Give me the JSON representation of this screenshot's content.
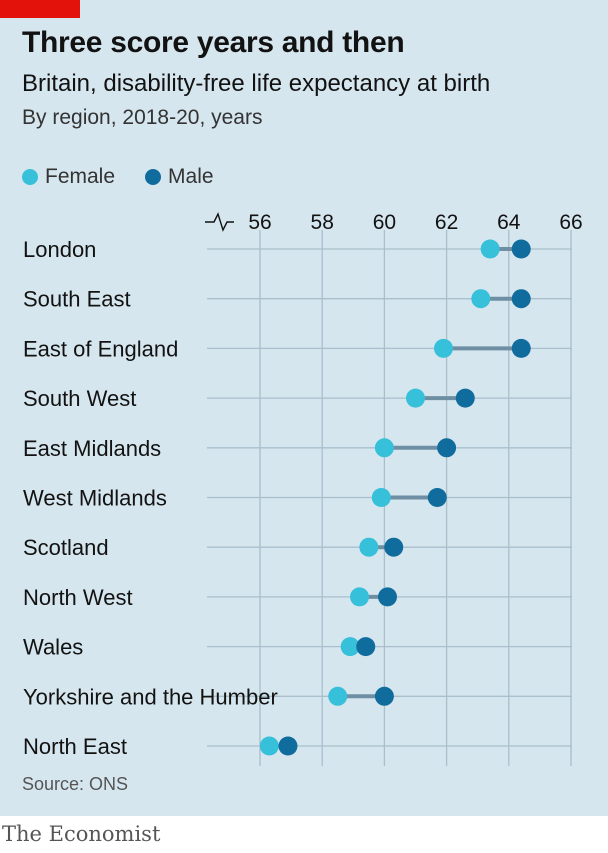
{
  "header": {
    "title": "Three score years and then",
    "subtitle": "Britain, disability-free life expectancy at birth",
    "subsubtitle": "By region, 2018-20, years"
  },
  "footer": {
    "source": "Source: ONS",
    "brand": "The Economist"
  },
  "colors": {
    "female": "#36c0d9",
    "male": "#116c9e",
    "connector": "#6e8fa3",
    "grid": "#a9bfcc",
    "brand_red": "#e3120b"
  },
  "chart_data": {
    "type": "dumbbell",
    "title": "Three score years and then",
    "subtitle": "Britain, disability-free life expectancy at birth",
    "unit_note": "By region, 2018-20, years",
    "legend": "top-left",
    "grid": true,
    "axis_break": true,
    "xlim": [
      55.5,
      66
    ],
    "xticks": [
      56,
      58,
      60,
      62,
      64,
      66
    ],
    "categories": [
      "London",
      "South East",
      "East of England",
      "South West",
      "East Midlands",
      "West Midlands",
      "Scotland",
      "North West",
      "Wales",
      "Yorkshire and the Humber",
      "North East"
    ],
    "series": [
      {
        "name": "Female",
        "values": [
          63.4,
          63.1,
          61.9,
          61.0,
          60.0,
          59.9,
          59.5,
          59.2,
          58.9,
          58.5,
          56.3
        ]
      },
      {
        "name": "Male",
        "values": [
          64.4,
          64.4,
          64.4,
          62.6,
          62.0,
          61.7,
          60.3,
          60.1,
          59.4,
          60.0,
          56.9
        ]
      }
    ]
  }
}
